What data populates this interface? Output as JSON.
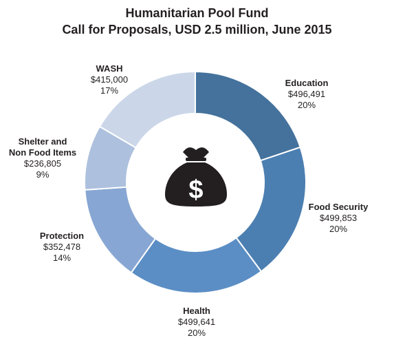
{
  "title": "Humanitarian Pool Fund",
  "subtitle": "Call for Proposals, USD 2.5 million, June 2015",
  "icon": "money-bag-icon",
  "chart_data": {
    "type": "pie",
    "donut": true,
    "slices": [
      {
        "name": "Education",
        "amount": "$496,491",
        "percent": "20%",
        "value": 496491,
        "color": "#44729c"
      },
      {
        "name": "Food Security",
        "amount": "$499,853",
        "percent": "20%",
        "value": 499853,
        "color": "#4c7fb1"
      },
      {
        "name": "Health",
        "amount": "$499,641",
        "percent": "20%",
        "value": 499641,
        "color": "#5b8ec5"
      },
      {
        "name": "Protection",
        "amount": "$352,478",
        "percent": "14%",
        "value": 352478,
        "color": "#87a6d3"
      },
      {
        "name": "Shelter and Non Food Items",
        "name_lines": [
          "Shelter and",
          "Non Food Items"
        ],
        "amount": "$236,805",
        "percent": "9%",
        "value": 236805,
        "color": "#adc0de"
      },
      {
        "name": "WASH",
        "amount": "$415,000",
        "percent": "17%",
        "value": 415000,
        "color": "#cbd7e9"
      }
    ]
  }
}
